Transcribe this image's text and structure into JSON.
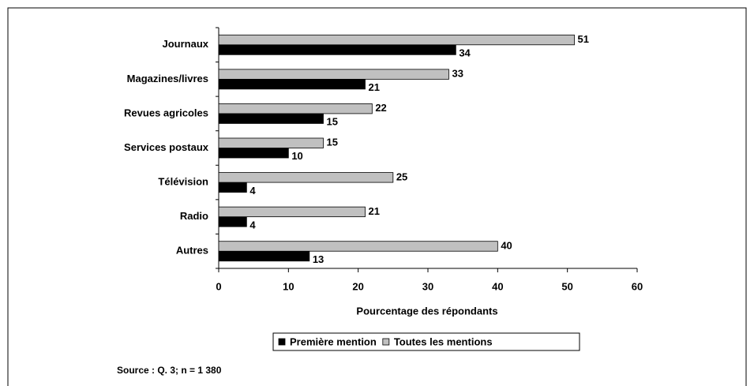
{
  "chart_data": {
    "type": "bar",
    "orientation": "horizontal",
    "categories": [
      "Journaux",
      "Magazines/livres",
      "Revues agricoles",
      "Services postaux",
      "Télévision",
      "Radio",
      "Autres"
    ],
    "series": [
      {
        "name": "Première mention",
        "color": "#000000",
        "values": [
          34,
          21,
          15,
          10,
          4,
          4,
          13
        ]
      },
      {
        "name": "Toutes les mentions",
        "color": "#c0c0c0",
        "values": [
          51,
          33,
          22,
          15,
          25,
          21,
          40
        ]
      }
    ],
    "xlabel": "Pourcentage des répondants",
    "xlim": [
      0,
      60
    ],
    "xticks": [
      0,
      10,
      20,
      30,
      40,
      50,
      60
    ],
    "legend": "bottom",
    "source": "Source : Q. 3; n = 1 380"
  }
}
